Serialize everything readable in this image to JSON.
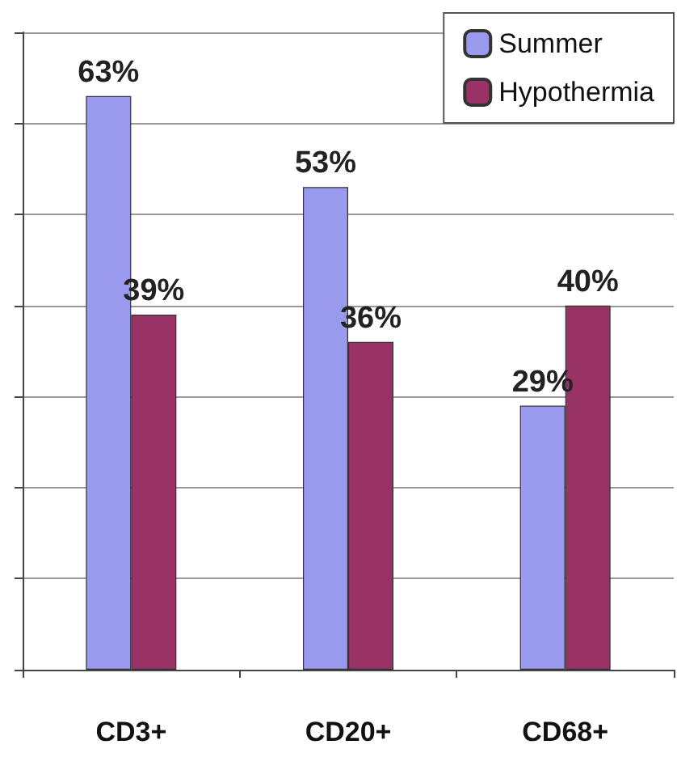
{
  "chart_data": {
    "type": "bar",
    "categories": [
      "CD3+",
      "CD20+",
      "CD68+"
    ],
    "series": [
      {
        "name": "Summer",
        "color": "#9999ee",
        "values": [
          63,
          53,
          29
        ],
        "value_labels": [
          "63%",
          "53%",
          "29%"
        ]
      },
      {
        "name": "Hypothermia",
        "color": "#993366",
        "values": [
          39,
          36,
          40
        ],
        "value_labels": [
          "39%",
          "36%",
          "40%"
        ]
      }
    ],
    "ylim": [
      0,
      70
    ],
    "yticks": [
      {
        "value": 0,
        "label": null
      },
      {
        "value": 10,
        "label": null
      },
      {
        "value": 20,
        "label": null
      },
      {
        "value": 30,
        "label": null
      },
      {
        "value": 40,
        "label": null
      },
      {
        "value": 50,
        "label": null
      },
      {
        "value": 60,
        "label": null
      },
      {
        "value": 70,
        "label": null
      }
    ],
    "tick_labels": "x",
    "grid": "y",
    "legend": "top right"
  }
}
